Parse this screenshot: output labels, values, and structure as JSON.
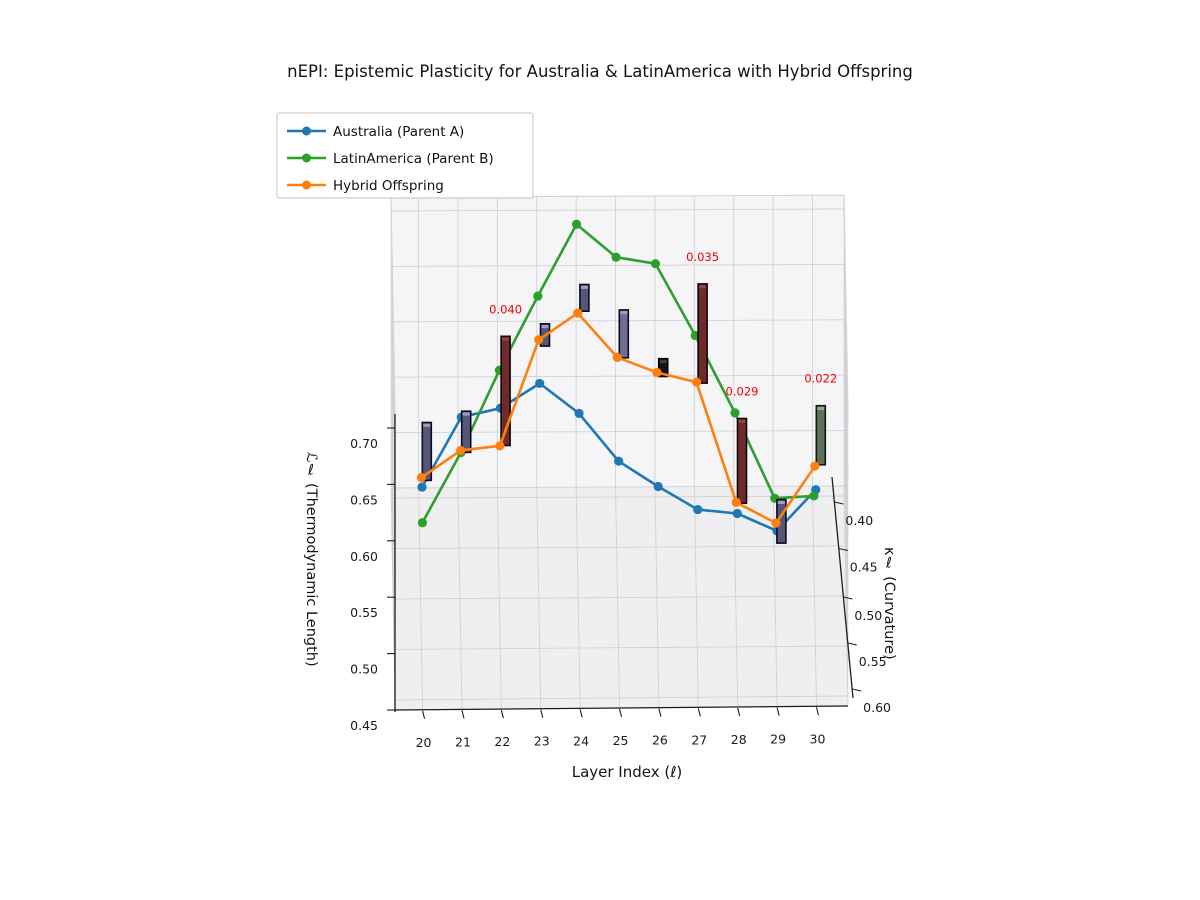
{
  "title": "nEPI: Epistemic Plasticity for Australia & LatinAmerica with Hybrid Offspring",
  "axes": {
    "x": {
      "label": "Layer Index (ℓ)",
      "ticks": [
        20,
        21,
        22,
        23,
        24,
        25,
        26,
        27,
        28,
        29,
        30
      ]
    },
    "z": {
      "label": "ℒℓ (Thermodynamic Length)",
      "ticks": [
        "0.45",
        "0.50",
        "0.55",
        "0.60",
        "0.65",
        "0.70"
      ]
    },
    "y": {
      "label": "κℓ (Curvature)",
      "ticks": [
        "0.40",
        "0.45",
        "0.50",
        "0.55",
        "0.60"
      ]
    }
  },
  "legend": {
    "items": [
      {
        "label": "Australia (Parent A)",
        "color": "#1f77b4"
      },
      {
        "label": "LatinAmerica (Parent B)",
        "color": "#2ca02c"
      },
      {
        "label": "Hybrid Offspring",
        "color": "#ff7f0e"
      }
    ]
  },
  "annotation_color": "#ee0000",
  "chart_data": {
    "type": "line3d",
    "xlabel": "Layer Index (ℓ)",
    "ylabel": "κℓ (Curvature)",
    "zlabel": "ℒℓ (Thermodynamic Length)",
    "xlim": [
      19.3,
      30.8
    ],
    "ylim": [
      0.39,
      0.61
    ],
    "zlim": [
      0.45,
      0.7125
    ],
    "grid": true,
    "layers": [
      20,
      21,
      22,
      23,
      24,
      25,
      26,
      27,
      28,
      29,
      30
    ],
    "series": [
      {
        "name": "Australia (Parent A)",
        "color": "#1f77b4",
        "curvature": [
          0.58,
          0.57,
          0.56,
          0.55,
          0.55,
          0.56,
          0.57,
          0.58,
          0.59,
          0.6,
          0.57
        ],
        "thermo_length": [
          0.621,
          0.674,
          0.673,
          0.686,
          0.659,
          0.625,
          0.611,
          0.599,
          0.604,
          0.597,
          0.607
        ]
      },
      {
        "name": "LatinAmerica (Parent B)",
        "color": "#2ca02c",
        "curvature": [
          0.6,
          0.55,
          0.5,
          0.45,
          0.41,
          0.42,
          0.42,
          0.44,
          0.46,
          0.48,
          0.47
        ],
        "thermo_length": [
          0.607,
          0.625,
          0.654,
          0.676,
          0.705,
          0.684,
          0.678,
          0.631,
          0.579,
          0.52,
          0.513
        ]
      },
      {
        "name": "Hybrid Offspring",
        "color": "#ff7f0e",
        "curvature": [
          0.55,
          0.54,
          0.53,
          0.5,
          0.48,
          0.49,
          0.5,
          0.51,
          0.53,
          0.55,
          0.52
        ],
        "thermo_length": [
          0.603,
          0.618,
          0.613,
          0.681,
          0.687,
          0.656,
          0.651,
          0.651,
          0.561,
          0.56,
          0.584
        ]
      }
    ],
    "bars": [
      {
        "layer": 20,
        "bottom": 0.52,
        "top": 0.572,
        "color": "#565678",
        "cap": "#9e9ec6",
        "edge": "#0d0d1a",
        "label": ""
      },
      {
        "layer": 21,
        "bottom": 0.545,
        "top": 0.582,
        "color": "#565678",
        "cap": "#9e9ec6",
        "edge": "#0d0d1a",
        "label": ""
      },
      {
        "layer": 22,
        "bottom": 0.551,
        "top": 0.649,
        "color": "#6e2b2b",
        "cap": "#8f4545",
        "edge": "#140505",
        "label": "0.040"
      },
      {
        "layer": 23,
        "bottom": 0.64,
        "top": 0.66,
        "color": "#565678",
        "cap": "#9e9ec6",
        "edge": "#0d0d1a",
        "label": ""
      },
      {
        "layer": 24,
        "bottom": 0.671,
        "top": 0.695,
        "color": "#565678",
        "cap": "#9e9ec6",
        "edge": "#0d0d1a",
        "label": ""
      },
      {
        "layer": 25,
        "bottom": 0.629,
        "top": 0.672,
        "color": "#6e6e92",
        "cap": "#9e9ec6",
        "edge": "#0d0d1a",
        "label": ""
      },
      {
        "layer": 26,
        "bottom": 0.612,
        "top": 0.628,
        "color": "#141414",
        "cap": "#3c3c3c",
        "edge": "#000000",
        "label": ""
      },
      {
        "layer": 27,
        "bottom": 0.606,
        "top": 0.695,
        "color": "#6e2b2b",
        "cap": "#8f4545",
        "edge": "#140505",
        "label": "0.035"
      },
      {
        "layer": 28,
        "bottom": 0.498,
        "top": 0.574,
        "color": "#6e2b2b",
        "cap": "#8f4545",
        "edge": "#140505",
        "label": "0.029"
      },
      {
        "layer": 29,
        "bottom": 0.462,
        "top": 0.501,
        "color": "#565678",
        "cap": "#9e9ec6",
        "edge": "#0d0d1a",
        "label": ""
      },
      {
        "layer": 30,
        "bottom": 0.532,
        "top": 0.585,
        "color": "#5d7058",
        "cap": "#94ab8e",
        "edge": "#101810",
        "label": "0.022"
      }
    ]
  }
}
